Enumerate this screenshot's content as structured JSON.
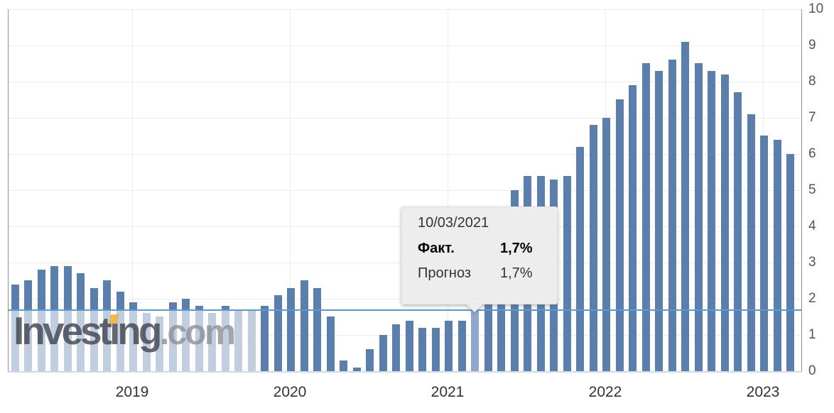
{
  "watermark": {
    "text": "Investing.com",
    "main_prefix": "Invest",
    "main_dotless_i": "ı",
    "main_rest": "ng",
    "suffix": ".com",
    "accent_color": "#f5a623"
  },
  "tooltip": {
    "date": "10/03/2021",
    "rows": [
      {
        "label": "Факт.",
        "value": "1,7%"
      },
      {
        "label": "Прогноз",
        "value": "1,7%"
      }
    ]
  },
  "chart_data": {
    "type": "bar",
    "title": "",
    "xlabel": "",
    "ylabel": "",
    "x_tick_labels": [
      "2019",
      "2020",
      "2021",
      "2022",
      "2023"
    ],
    "y_ticks": [
      0,
      1,
      2,
      3,
      4,
      5,
      6,
      7,
      8,
      9,
      10
    ],
    "ylim": [
      0,
      10
    ],
    "grid": true,
    "values": [
      2.4,
      2.5,
      2.8,
      2.9,
      2.9,
      2.7,
      2.3,
      2.5,
      2.2,
      1.9,
      1.6,
      1.5,
      1.9,
      2.0,
      1.8,
      1.6,
      1.8,
      1.7,
      1.7,
      1.8,
      2.1,
      2.3,
      2.5,
      2.3,
      1.5,
      0.3,
      0.1,
      0.6,
      1.0,
      1.3,
      1.4,
      1.2,
      1.2,
      1.4,
      1.4,
      1.7,
      2.6,
      4.2,
      5.0,
      5.4,
      5.4,
      5.3,
      5.4,
      6.2,
      6.8,
      7.0,
      7.5,
      7.9,
      8.5,
      8.3,
      8.6,
      9.1,
      8.5,
      8.3,
      8.2,
      7.7,
      7.1,
      6.5,
      6.4,
      6.0
    ],
    "highlighted_index": 35,
    "highlighted_value_label": "1,7%",
    "reference_line": 1.7,
    "colors": {
      "bar": "#5b7fac",
      "bar_highlighted": "#8fa9cd",
      "reference_line": "#5b9bd5",
      "baseline": "#ccd9ec",
      "grid": "#ececec",
      "axis": "#909090"
    }
  }
}
